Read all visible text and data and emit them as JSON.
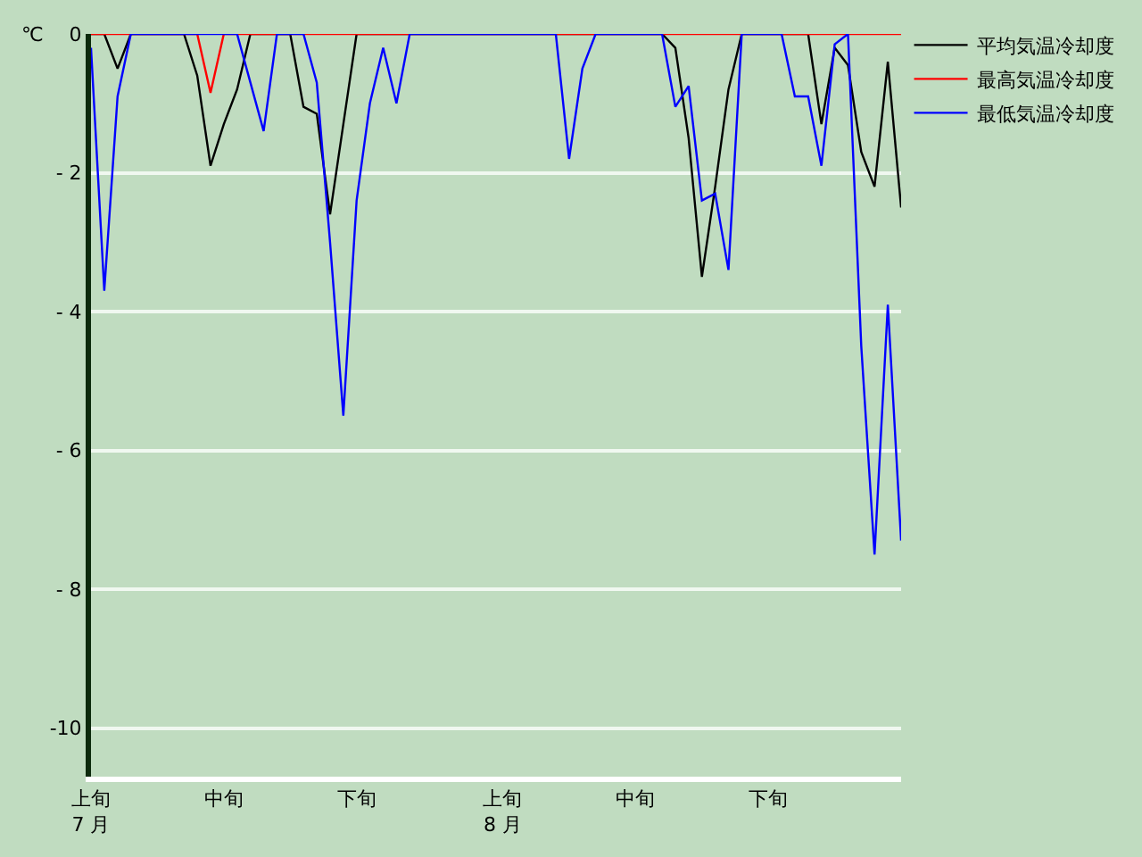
{
  "chart_data": {
    "type": "line",
    "ylabel": "℃",
    "categories": [
      "上旬\n7 月",
      null,
      null,
      null,
      null,
      null,
      null,
      null,
      null,
      null,
      "中旬",
      null,
      null,
      null,
      null,
      null,
      null,
      null,
      null,
      null,
      "下旬",
      null,
      null,
      null,
      null,
      null,
      null,
      null,
      null,
      null,
      null,
      "上旬\n8 月",
      null,
      null,
      null,
      null,
      null,
      null,
      null,
      null,
      null,
      "中旬",
      null,
      null,
      null,
      null,
      null,
      null,
      null,
      null,
      null,
      "下旬",
      null,
      null,
      null,
      null,
      null,
      null,
      null,
      null,
      null,
      null
    ],
    "series": [
      {
        "name": "平均気温冷却度",
        "color": "#000000",
        "values": [
          0,
          0,
          -0.5,
          0,
          0,
          0,
          0,
          0,
          -0.6,
          -1.9,
          -1.3,
          -0.8,
          0,
          0,
          0,
          0,
          -1.05,
          -1.15,
          -2.6,
          -1.3,
          0,
          0,
          0,
          0,
          0,
          0,
          0,
          0,
          0,
          0,
          0,
          0,
          0,
          0,
          0,
          0,
          0,
          0,
          0,
          0,
          0,
          0,
          0,
          0,
          -0.2,
          -1.5,
          -3.5,
          -2.2,
          -0.8,
          0,
          0,
          0,
          0,
          0,
          0,
          -1.3,
          -0.2,
          -0.45,
          -1.7,
          -2.2,
          -0.4,
          -2.5
        ]
      },
      {
        "name": "最高気温冷却度",
        "color": "#ff0000",
        "values": [
          0,
          0,
          0,
          0,
          0,
          0,
          0,
          0,
          0,
          -0.85,
          0,
          0,
          0,
          0,
          0,
          0,
          0,
          0,
          0,
          0,
          0,
          0,
          0,
          0,
          0,
          0,
          0,
          0,
          0,
          0,
          0,
          0,
          0,
          0,
          0,
          0,
          0,
          0,
          0,
          0,
          0,
          0,
          0,
          0,
          0,
          0,
          0,
          0,
          0,
          0,
          0,
          0,
          0,
          0,
          0,
          0,
          0,
          0,
          0,
          0,
          0,
          0
        ]
      },
      {
        "name": "最低気温冷却度",
        "color": "#0000ff",
        "values": [
          -0.2,
          -3.7,
          -0.9,
          0,
          0,
          0,
          0,
          0,
          0,
          0,
          0,
          0,
          -0.7,
          -1.4,
          0,
          0,
          0,
          -0.7,
          -3.0,
          -5.5,
          -2.4,
          -1.0,
          -0.2,
          -1.0,
          0,
          0,
          0,
          0,
          0,
          0,
          0,
          0,
          0,
          0,
          0,
          0,
          -1.8,
          -0.5,
          0,
          0,
          0,
          0,
          0,
          0,
          -1.05,
          -0.75,
          -2.4,
          -2.3,
          -3.4,
          0,
          0,
          0,
          0,
          -0.9,
          -0.9,
          -1.9,
          -0.15,
          0,
          -4.5,
          -7.5,
          -3.9,
          -7.3
        ]
      }
    ],
    "ylim": [
      -10.7,
      0
    ],
    "yticks": [
      0,
      {
        "value": -2,
        "label": "- 2"
      },
      {
        "value": -4,
        "label": "- 4"
      },
      {
        "value": -6,
        "label": "- 6"
      },
      {
        "value": -8,
        "label": "- 8"
      },
      {
        "value": -10,
        "label": "-10"
      }
    ],
    "grid": "y",
    "legend": "top right",
    "marker": "none",
    "line_style": "solid"
  }
}
